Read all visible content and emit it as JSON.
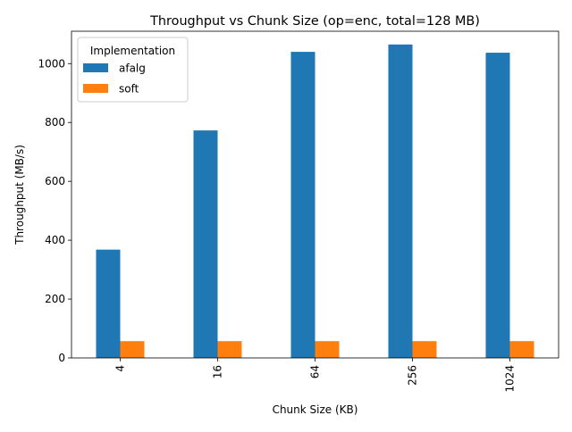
{
  "chart_data": {
    "type": "bar",
    "title": "Throughput vs Chunk Size (op=enc, total=128 MB)",
    "xlabel": "Chunk Size (KB)",
    "ylabel": "Throughput (MB/s)",
    "categories": [
      "4",
      "16",
      "64",
      "256",
      "1024"
    ],
    "ylim": [
      0,
      1110
    ],
    "yticks": [
      0,
      200,
      400,
      600,
      800,
      1000
    ],
    "grid": false,
    "legend": {
      "title": "Implementation",
      "placement": "top-left"
    },
    "series": [
      {
        "name": "afalg",
        "color": "#1f77b4",
        "values": [
          368,
          773,
          1040,
          1065,
          1037
        ]
      },
      {
        "name": "soft",
        "color": "#ff7f0e",
        "values": [
          57,
          57,
          57,
          57,
          57
        ]
      }
    ]
  }
}
